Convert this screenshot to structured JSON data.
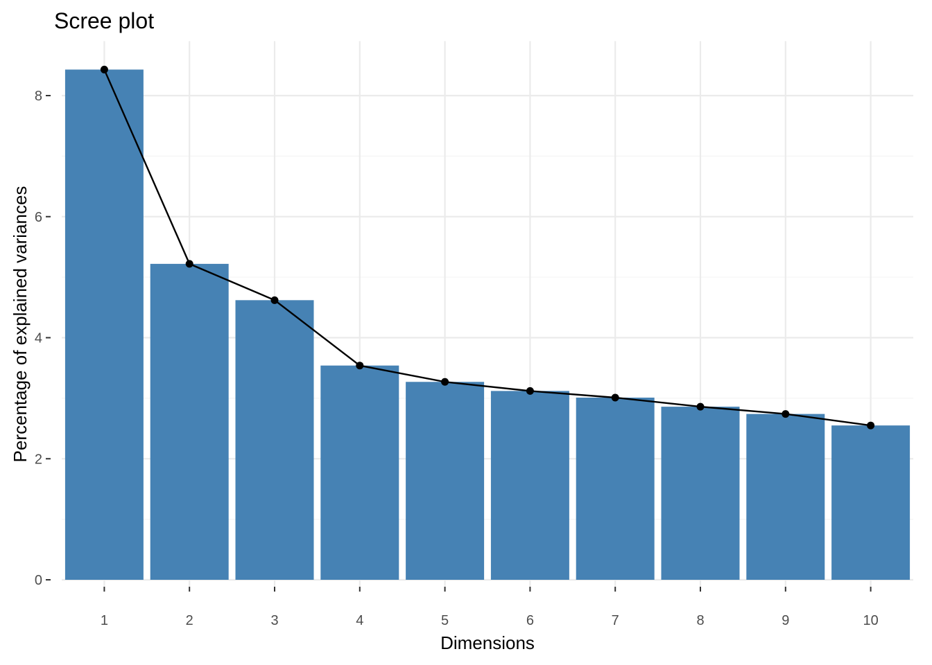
{
  "chart_data": {
    "type": "bar",
    "title": "Scree plot",
    "xlabel": "Dimensions",
    "ylabel": "Percentage of explained variances",
    "categories": [
      "1",
      "2",
      "3",
      "4",
      "5",
      "6",
      "7",
      "8",
      "9",
      "10"
    ],
    "values": [
      8.43,
      5.22,
      4.62,
      3.54,
      3.27,
      3.12,
      3.01,
      2.86,
      2.74,
      2.55
    ],
    "ylim": [
      0,
      8.9
    ],
    "yticks": [
      "0",
      "2",
      "4",
      "6",
      "8"
    ],
    "grid": true,
    "legend": "none",
    "overlay_line": true,
    "colors": {
      "bar": "#4682B4",
      "line": "#000000",
      "point": "#000000",
      "grid_major": "#EBEBEB",
      "grid_minor": "#F5F5F5",
      "tick_label": "#4D4D4D"
    }
  }
}
